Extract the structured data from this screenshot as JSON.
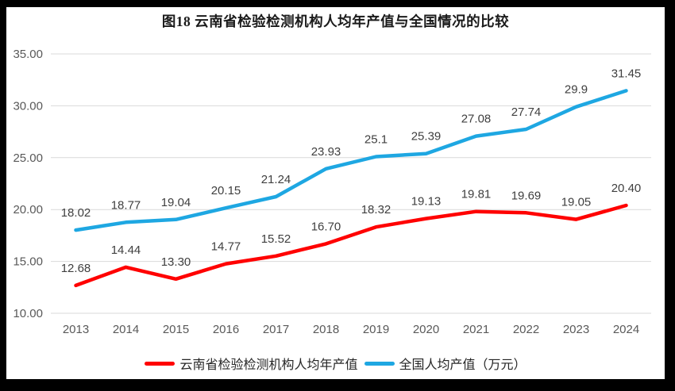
{
  "frame": {
    "border_color": "#000000",
    "page_background": "#ffffff"
  },
  "chart_data": {
    "type": "line",
    "title": "图18 云南省检验检测机构人均年产值与全国情况的比较",
    "categories": [
      "2013",
      "2014",
      "2015",
      "2016",
      "2017",
      "2018",
      "2019",
      "2020",
      "2021",
      "2022",
      "2023",
      "2024"
    ],
    "series": [
      {
        "name": "云南省检验检测机构人均年产值",
        "color": "#FF0000",
        "values": [
          12.68,
          14.44,
          13.3,
          14.77,
          15.52,
          16.7,
          18.32,
          19.13,
          19.81,
          19.69,
          19.05,
          20.4
        ],
        "labels": [
          "12.68",
          "14.44",
          "13.30",
          "14.77",
          "15.52",
          "16.70",
          "18.32",
          "19.13",
          "19.81",
          "19.69",
          "19.05",
          "20.40"
        ]
      },
      {
        "name": "全国人均产值（万元）",
        "color": "#1EA7E2",
        "values": [
          18.02,
          18.77,
          19.04,
          20.15,
          21.24,
          23.93,
          25.1,
          25.39,
          27.08,
          27.74,
          29.9,
          31.45
        ],
        "labels": [
          "18.02",
          "18.77",
          "19.04",
          "20.15",
          "21.24",
          "23.93",
          "25.1",
          "25.39",
          "27.08",
          "27.74",
          "29.9",
          "31.45"
        ]
      }
    ],
    "xlabel": "",
    "ylabel": "",
    "ylim": [
      10,
      35
    ],
    "ytick_step": 5,
    "yticks": [
      "10.00",
      "15.00",
      "20.00",
      "25.00",
      "30.00",
      "35.00"
    ],
    "grid": true,
    "legend_position": "bottom"
  },
  "colors": {
    "gridline": "#D9D9D9",
    "axis_text": "#595959",
    "data_label_text": "#3F3F3F",
    "title_text": "#1A1A1A"
  }
}
